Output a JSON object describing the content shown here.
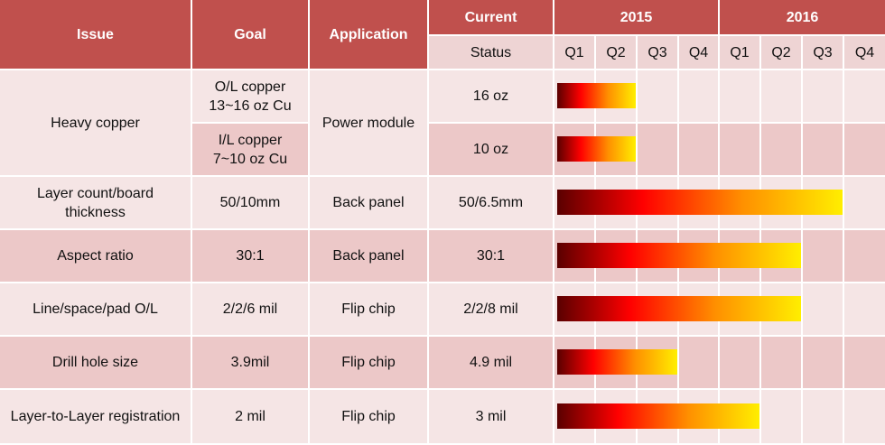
{
  "header": {
    "issue": "Issue",
    "goal": "Goal",
    "application": "Application",
    "current": "Current",
    "status": "Status",
    "year_2015": "2015",
    "year_2016": "2016",
    "quarters": [
      "Q1",
      "Q2",
      "Q3",
      "Q4",
      "Q1",
      "Q2",
      "Q3",
      "Q4"
    ]
  },
  "rows": [
    {
      "issue": "Heavy  copper",
      "goal": "O/L copper\n13~16 oz Cu",
      "application": "Power module",
      "current": "16 oz",
      "span": [
        "2015-Q1",
        "2015-Q2"
      ]
    },
    {
      "issue": "",
      "goal": "I/L copper\n7~10 oz Cu",
      "application": "",
      "current": "10 oz",
      "span": [
        "2015-Q1",
        "2015-Q2"
      ]
    },
    {
      "issue": "Layer count/board\nthickness",
      "goal": "50/10mm",
      "application": "Back panel",
      "current": "50/6.5mm",
      "span": [
        "2015-Q1",
        "2016-Q3"
      ]
    },
    {
      "issue": "Aspect ratio",
      "goal": "30:1",
      "application": "Back panel",
      "current": "30:1",
      "span": [
        "2015-Q1",
        "2016-Q2"
      ]
    },
    {
      "issue": "Line/space/pad  O/L",
      "goal": "2/2/6 mil",
      "application": "Flip chip",
      "current": "2/2/8 mil",
      "span": [
        "2015-Q1",
        "2016-Q2"
      ]
    },
    {
      "issue": "Drill hole size",
      "goal": "3.9mil",
      "application": "Flip chip",
      "current": "4.9 mil",
      "span": [
        "2015-Q1",
        "2015-Q3"
      ]
    },
    {
      "issue": "Layer-to-Layer registration",
      "goal": "2 mil",
      "application": "Flip chip",
      "current": "3 mil",
      "span": [
        "2015-Q1",
        "2016-Q1"
      ]
    }
  ],
  "colors": {
    "header": "#c0504d",
    "row_light": "#f5e5e5",
    "row_dark": "#ecc8c8",
    "bar_start": "#5a0000",
    "bar_end": "#ffee00"
  }
}
